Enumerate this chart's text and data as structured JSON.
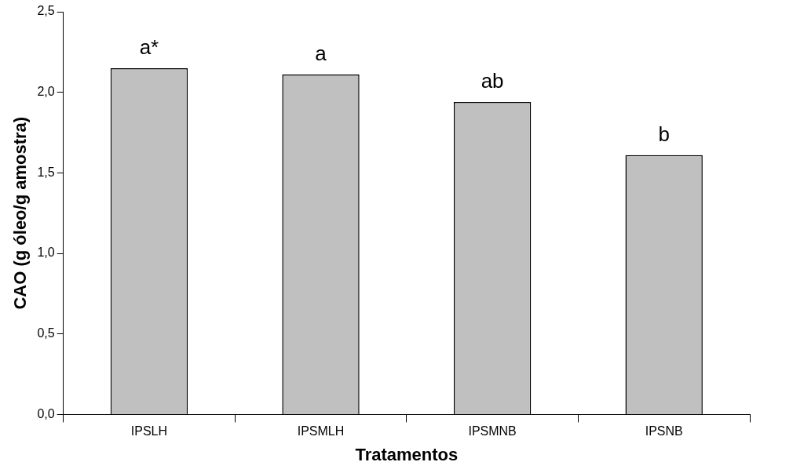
{
  "chart_data": {
    "type": "bar",
    "xlabel": "Tratamentos",
    "ylabel": "CAO (g óleo/g amostra)",
    "categories": [
      "IPSLH",
      "IPSMLH",
      "IPSMNB",
      "IPSNB"
    ],
    "values": [
      2.15,
      2.11,
      1.94,
      1.61
    ],
    "color": "#c0c0c0",
    "ylim": [
      0,
      2.5
    ],
    "yticks": [
      {
        "value": 0,
        "label": "0,0"
      },
      {
        "value": 0.5,
        "label": "0,5"
      },
      {
        "value": 1,
        "label": "1,0"
      },
      {
        "value": 1.5,
        "label": "1,5"
      },
      {
        "value": 2,
        "label": "2,0"
      },
      {
        "value": 2.5,
        "label": "2,5"
      }
    ],
    "annotations": [
      {
        "text": "a*",
        "x": "IPSLH",
        "y": 2.15
      },
      {
        "text": "a",
        "x": "IPSMLH",
        "y": 2.11
      },
      {
        "text": "ab",
        "x": "IPSMNB",
        "y": 1.94
      },
      {
        "text": "b",
        "x": "IPSNB",
        "y": 1.61
      }
    ],
    "grid": false,
    "legend": false
  }
}
